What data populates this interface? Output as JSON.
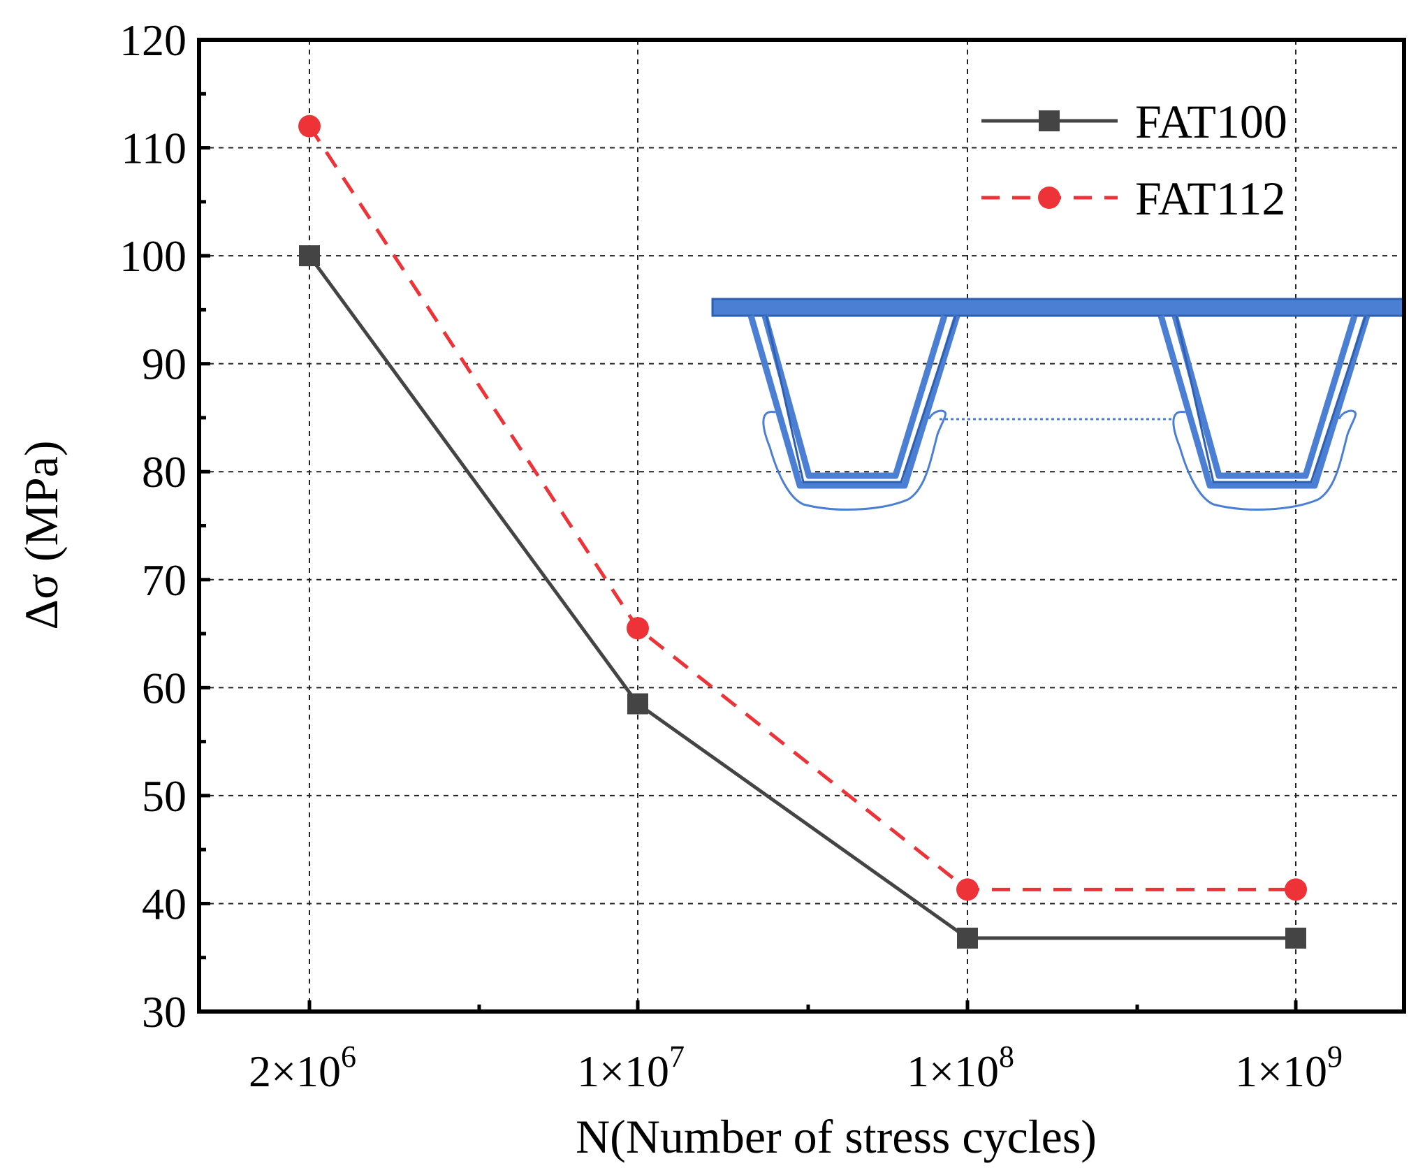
{
  "chart_data": {
    "type": "line",
    "title": "",
    "xlabel": "N(Number of stress cycles)",
    "ylabel": "Δσ (MPa)",
    "categories": [
      {
        "base": "2×10",
        "exp": "6"
      },
      {
        "base": "1×10",
        "exp": "7"
      },
      {
        "base": "1×10",
        "exp": "8"
      },
      {
        "base": "1×10",
        "exp": "9"
      }
    ],
    "ylim": [
      30,
      120
    ],
    "yticks": [
      30,
      40,
      50,
      60,
      70,
      80,
      90,
      100,
      110,
      120
    ],
    "grid": true,
    "legend_position": "top-right",
    "series": [
      {
        "name": "FAT100",
        "values": [
          100,
          58.5,
          36.8,
          36.8
        ],
        "color": "#444444",
        "marker": "square",
        "line": "solid"
      },
      {
        "name": "FAT112",
        "values": [
          112,
          65.5,
          41.3,
          41.3
        ],
        "color": "#ee3338",
        "marker": "circle",
        "line": "dashed"
      }
    ],
    "inset": {
      "description_icon": "orthotropic-deck-u-rib-icon",
      "color": "#4a7fd4"
    }
  }
}
